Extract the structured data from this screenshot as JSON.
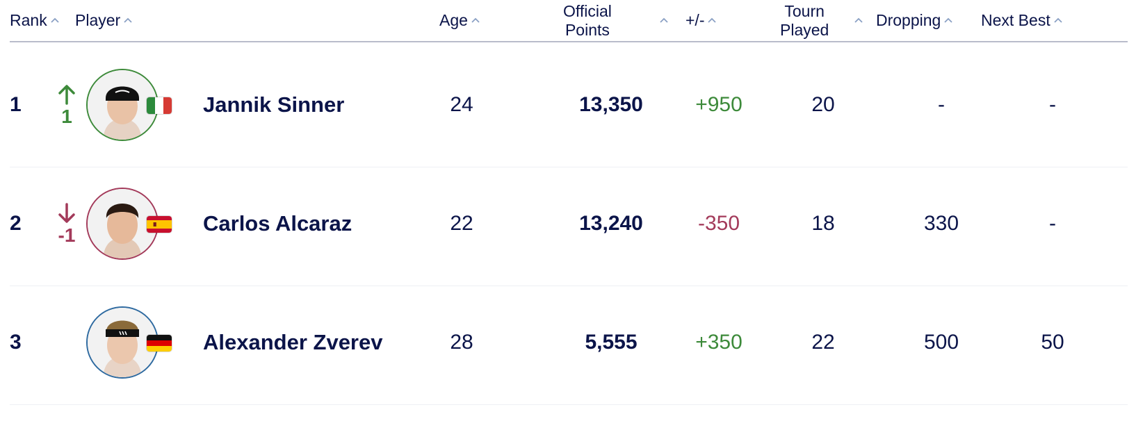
{
  "header": {
    "rank": "Rank",
    "player": "Player",
    "age": "Age",
    "official_points_line1": "Official",
    "official_points_line2": "Points",
    "plus_minus": "+/-",
    "tourn_played_line1": "Tourn",
    "tourn_played_line2": "Played",
    "dropping": "Dropping",
    "next_best": "Next Best"
  },
  "colors": {
    "navy": "#0b1449",
    "up_green": "#3d8a3a",
    "down_red": "#a33a5a",
    "header_rule": "#b9bccb"
  },
  "rows": [
    {
      "rank": "1",
      "movement": "1",
      "movement_dir": "up",
      "movement_icon": "arrow-up-icon",
      "flag": "italy-flag-icon",
      "name": "Jannik Sinner",
      "age": "24",
      "official_points": "13,350",
      "plus_minus": "+950",
      "tourn_played": "20",
      "dropping": "-",
      "next_best": "-"
    },
    {
      "rank": "2",
      "movement": "-1",
      "movement_dir": "down",
      "movement_icon": "arrow-down-icon",
      "flag": "spain-flag-icon",
      "name": "Carlos Alcaraz",
      "age": "22",
      "official_points": "13,240",
      "plus_minus": "-350",
      "tourn_played": "18",
      "dropping": "330",
      "next_best": "-"
    },
    {
      "rank": "3",
      "movement": "",
      "movement_dir": "none",
      "flag": "germany-flag-icon",
      "name": "Alexander Zverev",
      "age": "28",
      "official_points": "5,555",
      "plus_minus": "+350",
      "tourn_played": "22",
      "dropping": "500",
      "next_best": "50"
    }
  ]
}
